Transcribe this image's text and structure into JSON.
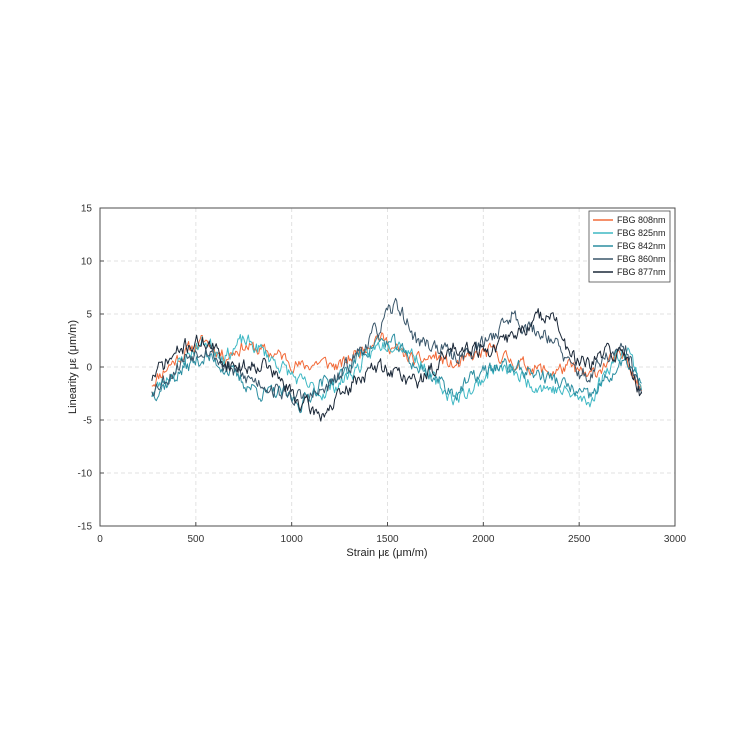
{
  "chart_data": {
    "type": "line",
    "title": "",
    "xlabel": "Strain με (μm/m)",
    "ylabel": "Linearity με (μm/m)",
    "xlim": [
      0,
      3000
    ],
    "ylim": [
      -15,
      15
    ],
    "xticks": [
      0,
      500,
      1000,
      1500,
      2000,
      2500,
      3000
    ],
    "yticks": [
      -15,
      -10,
      -5,
      0,
      5,
      10,
      15
    ],
    "grid": true,
    "legend_position": "top-right",
    "series": [
      {
        "name": "FBG 808nm",
        "color": "#f26b3a",
        "seed": 11,
        "amp": 0.55,
        "x": [
          270,
          350,
          450,
          550,
          650,
          750,
          850,
          950,
          1050,
          1150,
          1250,
          1350,
          1450,
          1550,
          1650,
          1750,
          1850,
          1950,
          2050,
          2150,
          2250,
          2350,
          2450,
          2550,
          2650,
          2750,
          2830
        ],
        "y": [
          -1.5,
          0,
          1.5,
          2.5,
          1,
          2,
          1.5,
          1,
          0,
          0.5,
          0,
          1.5,
          3,
          1.5,
          0.5,
          1,
          0,
          1,
          1.5,
          0.5,
          0,
          -0.5,
          0,
          -1,
          0.5,
          1,
          -2.5
        ]
      },
      {
        "name": "FBG 825nm",
        "color": "#3fb8c4",
        "seed": 23,
        "amp": 0.6,
        "x": [
          270,
          350,
          450,
          550,
          650,
          750,
          850,
          950,
          1050,
          1150,
          1250,
          1350,
          1450,
          1550,
          1650,
          1750,
          1850,
          1950,
          2050,
          2150,
          2250,
          2350,
          2450,
          2550,
          2650,
          2750,
          2830
        ],
        "y": [
          -2.5,
          -1,
          1,
          2.5,
          1,
          2.5,
          1.5,
          0,
          -1.5,
          -2.5,
          -1.5,
          0,
          2,
          2.5,
          1,
          -1.5,
          -3,
          -2,
          0,
          -0.5,
          -1.5,
          -2,
          -2.5,
          -3.5,
          0,
          2,
          -2
        ]
      },
      {
        "name": "FBG 842nm",
        "color": "#2b8ea1",
        "seed": 37,
        "amp": 0.6,
        "x": [
          270,
          350,
          450,
          550,
          650,
          750,
          850,
          950,
          1050,
          1150,
          1250,
          1350,
          1450,
          1550,
          1650,
          1750,
          1850,
          1950,
          2050,
          2150,
          2250,
          2350,
          2450,
          2550,
          2650,
          2750,
          2830
        ],
        "y": [
          -2.5,
          -1.5,
          0,
          1,
          0,
          -1.5,
          -2.5,
          -2.5,
          -3.5,
          -1.5,
          -1,
          1,
          2.5,
          2,
          0,
          -1,
          -2.5,
          -1,
          0,
          0,
          -0.5,
          -1,
          -2,
          -3,
          -1,
          0.5,
          -2
        ]
      },
      {
        "name": "FBG 860nm",
        "color": "#3a566a",
        "seed": 53,
        "amp": 0.65,
        "x": [
          270,
          350,
          450,
          550,
          650,
          750,
          850,
          950,
          1050,
          1150,
          1250,
          1350,
          1450,
          1550,
          1650,
          1750,
          1850,
          1950,
          2050,
          2150,
          2250,
          2350,
          2450,
          2550,
          2650,
          2750,
          2830
        ],
        "y": [
          -2,
          -1,
          1,
          2,
          0,
          -1,
          -1.5,
          -2.5,
          -3,
          -2.5,
          -1,
          1.5,
          3.5,
          6,
          2.5,
          2,
          1,
          1.5,
          3,
          5,
          3.5,
          3,
          0,
          -1,
          1,
          1.5,
          -3
        ]
      },
      {
        "name": "FBG 877nm",
        "color": "#1b2838",
        "seed": 71,
        "amp": 0.65,
        "x": [
          270,
          350,
          450,
          550,
          650,
          750,
          850,
          950,
          1050,
          1150,
          1250,
          1350,
          1450,
          1550,
          1650,
          1750,
          1850,
          1950,
          2050,
          2150,
          2250,
          2350,
          2450,
          2550,
          2650,
          2750,
          2830
        ],
        "y": [
          -1,
          0.5,
          2,
          2.5,
          0.5,
          0,
          0.5,
          -1.5,
          -3.5,
          -4.5,
          -3,
          -1,
          0,
          -0.5,
          -1.5,
          0,
          2,
          2,
          1.5,
          3,
          4,
          5.5,
          1,
          0,
          1.5,
          1,
          -3
        ]
      }
    ]
  }
}
